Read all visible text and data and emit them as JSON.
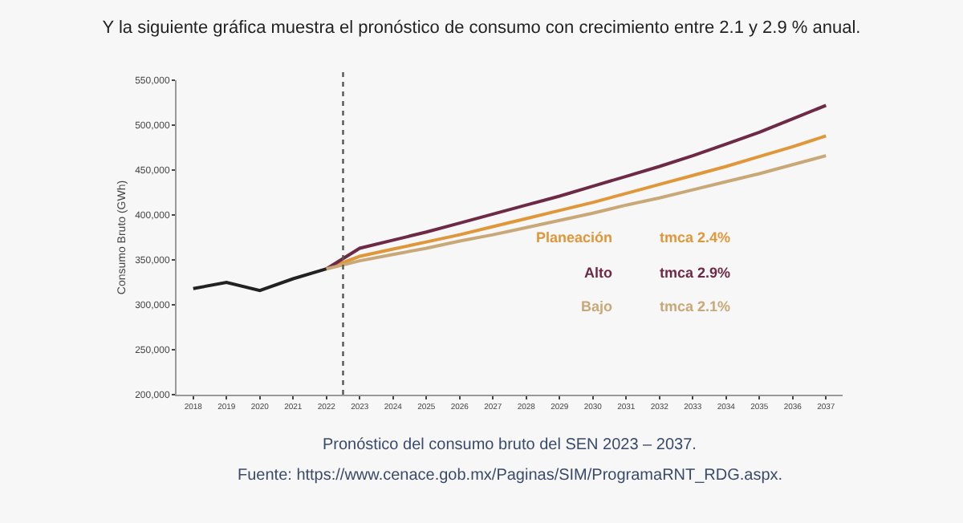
{
  "chart_data": {
    "type": "line",
    "title": "Y la siguiente gráfica muestra el pronóstico de consumo con crecimiento entre 2.1 y 2.9 % anual.",
    "ylabel": "Consumo Bruto (GWh)",
    "xlim": [
      2017.5,
      2037.5
    ],
    "xticks": [
      2018,
      2019,
      2020,
      2021,
      2022,
      2023,
      2024,
      2025,
      2026,
      2027,
      2028,
      2029,
      2030,
      2031,
      2032,
      2033,
      2034,
      2035,
      2036,
      2037
    ],
    "ylim": [
      200000,
      550000
    ],
    "yticks": [
      {
        "value": 200000,
        "label": "200,000"
      },
      {
        "value": 250000,
        "label": "250,000"
      },
      {
        "value": 300000,
        "label": "300,000"
      },
      {
        "value": 350000,
        "label": "350,000"
      },
      {
        "value": 400000,
        "label": "400,000"
      },
      {
        "value": 450000,
        "label": "450,000"
      },
      {
        "value": 500000,
        "label": "500,000"
      },
      {
        "value": 550000,
        "label": "550,000"
      }
    ],
    "series": [
      {
        "color": "#222222",
        "x": [
          2018,
          2019,
          2020,
          2021,
          2022
        ],
        "values": [
          318000,
          325000,
          316000,
          329000,
          340000
        ]
      },
      {
        "name": "Planeación",
        "color": "#e0973a",
        "x": [
          2022,
          2023,
          2024,
          2025,
          2026,
          2027,
          2028,
          2029,
          2030,
          2031,
          2032,
          2033,
          2034,
          2035,
          2036,
          2037
        ],
        "values": [
          340000,
          354000,
          362000,
          370000,
          378000,
          387000,
          396000,
          405000,
          414000,
          424000,
          434000,
          444000,
          454000,
          465000,
          476000,
          488000
        ]
      },
      {
        "name": "Alto",
        "color": "#6e2a45",
        "x": [
          2022,
          2023,
          2024,
          2025,
          2026,
          2027,
          2028,
          2029,
          2030,
          2031,
          2032,
          2033,
          2034,
          2035,
          2036,
          2037
        ],
        "values": [
          340000,
          363000,
          372000,
          381000,
          391000,
          401000,
          411000,
          421000,
          432000,
          443000,
          454000,
          466000,
          479000,
          492000,
          507000,
          522000
        ]
      },
      {
        "name": "Bajo",
        "color": "#c9a878",
        "x": [
          2022,
          2023,
          2024,
          2025,
          2026,
          2027,
          2028,
          2029,
          2030,
          2031,
          2032,
          2033,
          2034,
          2035,
          2036,
          2037
        ],
        "values": [
          340000,
          349000,
          356000,
          363000,
          371000,
          378000,
          386000,
          394000,
          402000,
          411000,
          419000,
          428000,
          437000,
          446000,
          456000,
          466000
        ]
      }
    ],
    "ref_lines": [
      {
        "axis": "x",
        "value": 2022.5,
        "color": "#555555",
        "line_style": "dotted"
      }
    ],
    "annotations": [
      "tmca 2.4%",
      "tmca 2.9%",
      "tmca 2.1%",
      "Pronóstico del consumo bruto del SEN 2023 – 2037.",
      "Fuente: https://www.cenace.gob.mx/Paginas/SIM/ProgramaRNT_RDG.aspx."
    ],
    "grid": false,
    "legend": false,
    "marker": "none",
    "line_style": "solid"
  }
}
